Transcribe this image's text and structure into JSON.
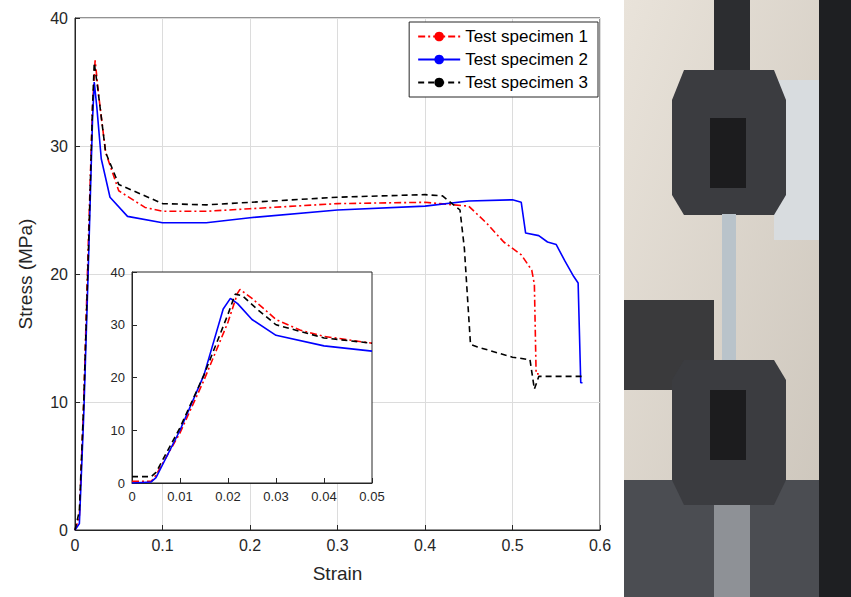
{
  "chart_data": [
    {
      "type": "line",
      "xlabel": "Strain",
      "ylabel": "Stress (MPa)",
      "xlim": [
        0,
        0.6
      ],
      "xticks": [
        0,
        0.1,
        0.2,
        0.3,
        0.4,
        0.5,
        0.6
      ],
      "ylim": [
        0,
        40
      ],
      "yticks": [
        0,
        10,
        20,
        30,
        40
      ],
      "grid": true,
      "legend": "upper right",
      "series": [
        {
          "name": "Test specimen 1",
          "color": "#ff0000",
          "line_style": "dashdot",
          "x": [
            0,
            0.005,
            0.01,
            0.015,
            0.02,
            0.023,
            0.027,
            0.035,
            0.05,
            0.08,
            0.1,
            0.15,
            0.2,
            0.3,
            0.4,
            0.45,
            0.47,
            0.49,
            0.51,
            0.522,
            0.525,
            0.527,
            0.53
          ],
          "values": [
            0,
            1,
            10,
            22,
            33,
            36.7,
            34,
            29.5,
            26.5,
            25.2,
            24.9,
            24.9,
            25.1,
            25.5,
            25.6,
            25.3,
            24,
            22.5,
            21.5,
            20.3,
            19.2,
            12.2,
            12.2
          ]
        },
        {
          "name": "Test specimen 2",
          "color": "#0000ff",
          "line_style": "solid",
          "x": [
            0,
            0.005,
            0.01,
            0.015,
            0.02,
            0.022,
            0.025,
            0.03,
            0.04,
            0.06,
            0.1,
            0.15,
            0.2,
            0.3,
            0.4,
            0.45,
            0.5,
            0.51,
            0.515,
            0.53,
            0.54,
            0.55,
            0.56,
            0.57,
            0.575,
            0.578,
            0.58
          ],
          "values": [
            0,
            0.5,
            9,
            20,
            32,
            35,
            33,
            29,
            26,
            24.5,
            24,
            24,
            24.4,
            25,
            25.3,
            25.7,
            25.8,
            25.6,
            23.2,
            23,
            22.5,
            22.3,
            21,
            19.8,
            19.3,
            11.5,
            11.5
          ]
        },
        {
          "name": "Test specimen 3",
          "color": "#000000",
          "line_style": "dashed",
          "x": [
            0,
            0.005,
            0.01,
            0.015,
            0.02,
            0.022,
            0.026,
            0.035,
            0.05,
            0.1,
            0.15,
            0.2,
            0.3,
            0.4,
            0.42,
            0.44,
            0.445,
            0.452,
            0.46,
            0.5,
            0.52,
            0.525,
            0.53,
            0.58
          ],
          "values": [
            0,
            1.5,
            10,
            21,
            33,
            36.5,
            34.5,
            29.5,
            27,
            25.5,
            25.4,
            25.6,
            26,
            26.2,
            26.1,
            25,
            22,
            14.5,
            14.3,
            13.5,
            13.3,
            11,
            12,
            12
          ]
        }
      ]
    },
    {
      "type": "line",
      "xlim": [
        0,
        0.05
      ],
      "xticks": [
        0,
        0.01,
        0.02,
        0.03,
        0.04,
        0.05
      ],
      "ylim": [
        0,
        40
      ],
      "yticks": [
        0,
        10,
        20,
        30,
        40
      ],
      "grid": false,
      "series": [
        {
          "name": "Test specimen 1",
          "color": "#ff0000",
          "line_style": "dashdot",
          "x": [
            0,
            0.004,
            0.005,
            0.01,
            0.015,
            0.02,
            0.022,
            0.0225,
            0.025,
            0.03,
            0.035,
            0.04,
            0.05
          ],
          "values": [
            0.3,
            0.3,
            1.5,
            9.5,
            19.5,
            30.5,
            36,
            36.7,
            35,
            31,
            29,
            27.8,
            26.5
          ]
        },
        {
          "name": "Test specimen 2",
          "color": "#0000ff",
          "line_style": "solid",
          "x": [
            0,
            0.004,
            0.005,
            0.01,
            0.015,
            0.019,
            0.0205,
            0.022,
            0.025,
            0.03,
            0.04,
            0.05
          ],
          "values": [
            0,
            0.2,
            1,
            10,
            20.5,
            33,
            35,
            34,
            31,
            28,
            26,
            25
          ]
        },
        {
          "name": "Test specimen 3",
          "color": "#000000",
          "line_style": "dashed",
          "x": [
            0,
            0.004,
            0.005,
            0.01,
            0.015,
            0.02,
            0.0215,
            0.023,
            0.026,
            0.03,
            0.04,
            0.05
          ],
          "values": [
            1.2,
            1.2,
            2,
            10.5,
            20.5,
            32,
            35.8,
            35.5,
            33,
            30,
            27.5,
            26.5
          ]
        }
      ]
    }
  ]
}
